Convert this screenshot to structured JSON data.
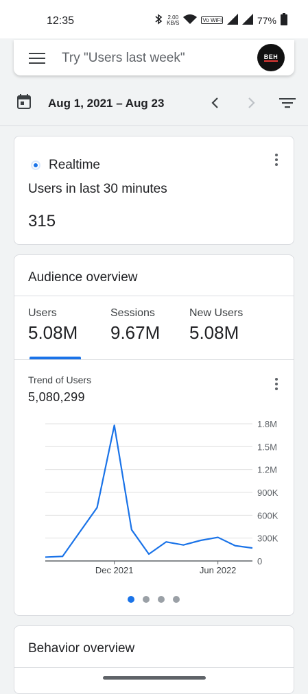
{
  "status_bar": {
    "time": "12:35",
    "speed_value": "2.00",
    "speed_unit": "KB/S",
    "volte_label": "Vo WiFi",
    "battery": "77%"
  },
  "search": {
    "placeholder": "Try \"Users last week\"",
    "avatar_text": "BEH"
  },
  "date_bar": {
    "range": "Aug 1, 2021 – Aug 23"
  },
  "realtime": {
    "title": "Realtime",
    "subtitle": "Users in last 30 minutes",
    "value": "315"
  },
  "audience": {
    "title": "Audience overview",
    "metrics": [
      {
        "label": "Users",
        "value": "5.08M"
      },
      {
        "label": "Sessions",
        "value": "9.67M"
      },
      {
        "label": "New Users",
        "value": "5.08M"
      }
    ],
    "trend_label": "Trend of Users",
    "trend_value": "5,080,299"
  },
  "chart_data": {
    "type": "line",
    "xlabel": "",
    "ylabel": "",
    "x_tick_labels": [
      "Dec 2021",
      "Jun 2022"
    ],
    "y_tick_labels": [
      "0",
      "300K",
      "600K",
      "900K",
      "1.2M",
      "1.5M",
      "1.8M"
    ],
    "ylim": [
      0,
      1800000
    ],
    "grid": true,
    "series": [
      {
        "color": "#1a73e8",
        "x": [
          "2021-08",
          "2021-09",
          "2021-10",
          "2021-11",
          "2021-12",
          "2022-01",
          "2022-02",
          "2022-03",
          "2022-04",
          "2022-05",
          "2022-06",
          "2022-07",
          "2022-08"
        ],
        "values": [
          50000,
          60000,
          380000,
          700000,
          1780000,
          410000,
          90000,
          250000,
          210000,
          270000,
          310000,
          200000,
          170000
        ]
      }
    ]
  },
  "pagination": {
    "active_index": 0,
    "count": 4
  },
  "behavior": {
    "title": "Behavior overview"
  },
  "colors": {
    "accent": "#1a73e8",
    "background": "#f1f3f4",
    "card": "#ffffff"
  }
}
